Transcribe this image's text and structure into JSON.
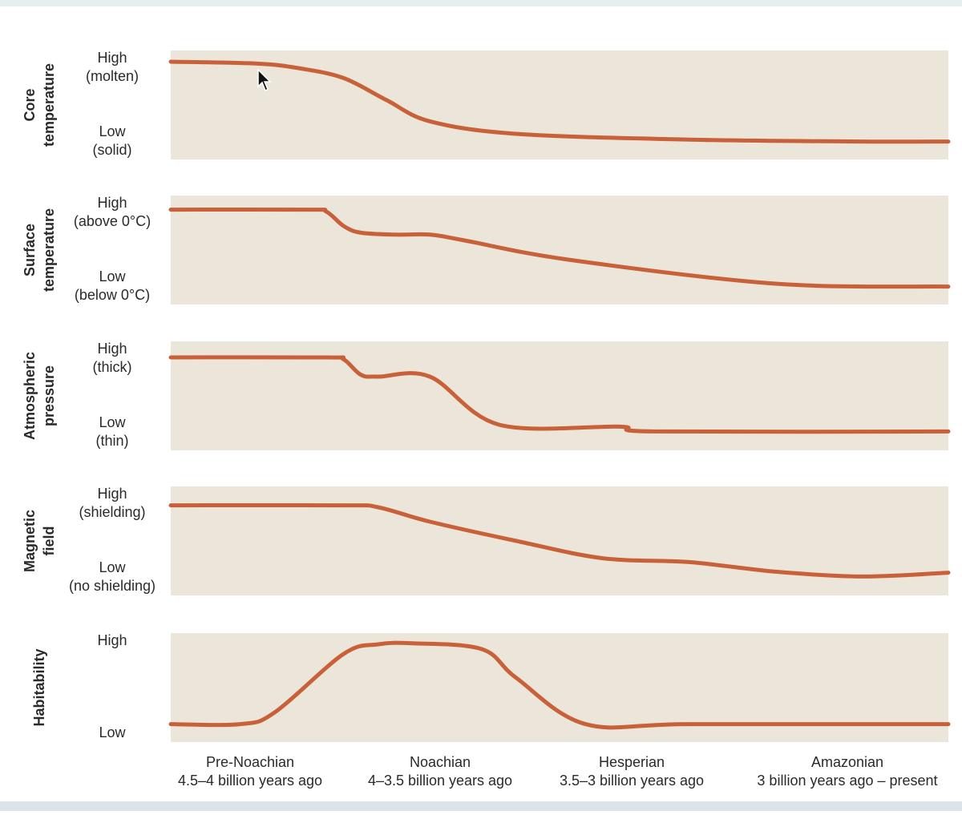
{
  "colors": {
    "panel": "#ebe6d9",
    "curve": "#c8613a",
    "text": "#2a2a2a"
  },
  "chart_data": {
    "type": "line",
    "x_unit": "billion years ago (reversed axis, values decrease left to right)",
    "xlim": [
      4.5,
      0
    ],
    "ylim": [
      0,
      1
    ],
    "periods": [
      {
        "name": "Pre-Noachian",
        "range_label": "4.5–4 billion years ago"
      },
      {
        "name": "Noachian",
        "range_label": "4–3.5 billion years ago"
      },
      {
        "name": "Hesperian",
        "range_label": "3.5–3 billion years ago"
      },
      {
        "name": "Amazonian",
        "range_label": "3 billion years ago – present"
      }
    ],
    "series": [
      {
        "name": "Core temperature",
        "label_lines": [
          "Core",
          "temperature"
        ],
        "high_lines": [
          "High",
          "(molten)"
        ],
        "low_lines": [
          "Low",
          "(solid)"
        ],
        "x": [
          4.5,
          4.0,
          3.75,
          3.5,
          3.25,
          3.0,
          2.5,
          1.5,
          0.5,
          0
        ],
        "y": [
          0.95,
          0.93,
          0.88,
          0.78,
          0.55,
          0.33,
          0.2,
          0.14,
          0.12,
          0.12
        ]
      },
      {
        "name": "Surface temperature",
        "label_lines": [
          "Surface",
          "temperature"
        ],
        "high_lines": [
          "High",
          "(above 0°C)"
        ],
        "low_lines": [
          "Low",
          "(below 0°C)"
        ],
        "x": [
          4.5,
          3.7,
          3.6,
          3.5,
          3.4,
          3.2,
          3.0,
          2.8,
          2.2,
          1.0,
          0
        ],
        "y": [
          0.92,
          0.92,
          0.9,
          0.75,
          0.68,
          0.66,
          0.66,
          0.6,
          0.4,
          0.15,
          0.12
        ]
      },
      {
        "name": "Atmospheric pressure",
        "label_lines": [
          "Atmospheric",
          "pressure"
        ],
        "high_lines": [
          "High",
          "(thick)"
        ],
        "low_lines": [
          "Low",
          "(thin)"
        ],
        "x": [
          4.5,
          3.6,
          3.5,
          3.4,
          3.3,
          3.0,
          2.6,
          1.9,
          1.7,
          0
        ],
        "y": [
          0.9,
          0.9,
          0.88,
          0.72,
          0.7,
          0.7,
          0.2,
          0.18,
          0.13,
          0.13
        ]
      },
      {
        "name": "Magnetic field",
        "label_lines": [
          "Magnetic",
          "field"
        ],
        "high_lines": [
          "High",
          "(shielding)"
        ],
        "low_lines": [
          "Low",
          "(no shielding)"
        ],
        "x": [
          4.5,
          3.5,
          3.3,
          3.0,
          2.5,
          2.0,
          1.5,
          1.0,
          0.5,
          0
        ],
        "y": [
          0.87,
          0.87,
          0.85,
          0.7,
          0.5,
          0.32,
          0.28,
          0.18,
          0.13,
          0.17
        ]
      },
      {
        "name": "Habitability",
        "label_lines": [
          "Habitability"
        ],
        "high_lines": [
          "High"
        ],
        "low_lines": [
          "Low"
        ],
        "x": [
          4.5,
          4.1,
          3.9,
          3.5,
          3.3,
          3.1,
          2.7,
          2.5,
          2.1,
          1.5,
          0
        ],
        "y": [
          0.12,
          0.12,
          0.24,
          0.85,
          0.95,
          0.96,
          0.9,
          0.6,
          0.12,
          0.12,
          0.12
        ]
      }
    ]
  }
}
